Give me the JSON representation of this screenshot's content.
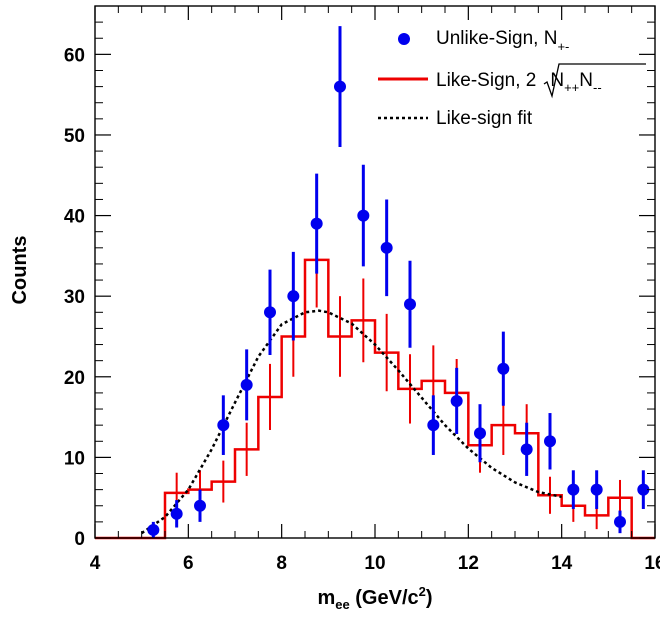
{
  "chart_data": {
    "type": "scatter",
    "xlabel": {
      "main": "m",
      "sub": "ee",
      "rest": " (GeV/c",
      "sup": "2",
      "end": ")"
    },
    "ylabel": "Counts",
    "xlim": [
      4,
      16
    ],
    "ylim": [
      0,
      66
    ],
    "xticks": [
      4,
      6,
      8,
      10,
      12,
      14,
      16
    ],
    "yticks": [
      0,
      10,
      20,
      30,
      40,
      50,
      60
    ],
    "grid": false,
    "legend_position": "top-right",
    "legend": {
      "unlike": {
        "main": "Unlike-Sign, N",
        "sub": "+-"
      },
      "like": {
        "main": "Like-Sign, 2",
        "rad1": "N",
        "rad1_sub": "++",
        "rad2": "N",
        "rad2_sub": "--"
      },
      "fit": "Like-sign fit"
    },
    "colors": {
      "unlike": "#0000ee",
      "like": "#ee0000",
      "fit": "#000000"
    },
    "unlike_sign": {
      "x": [
        5.25,
        5.75,
        6.25,
        6.75,
        7.25,
        7.75,
        8.25,
        8.75,
        9.25,
        9.75,
        10.25,
        10.75,
        11.25,
        11.75,
        12.25,
        12.75,
        13.25,
        13.75,
        14.25,
        14.75,
        15.25,
        15.75
      ],
      "y": [
        1,
        3,
        4,
        14,
        19,
        28,
        30,
        39,
        56,
        40,
        36,
        29,
        14,
        17,
        13,
        21,
        11,
        12,
        6,
        6,
        2,
        6
      ],
      "err": [
        1.0,
        1.7,
        2.0,
        3.7,
        4.4,
        5.3,
        5.5,
        6.2,
        7.5,
        6.3,
        6.0,
        5.4,
        3.7,
        4.1,
        3.6,
        4.6,
        3.3,
        3.5,
        2.4,
        2.4,
        1.4,
        2.4
      ]
    },
    "like_sign": {
      "bin_edges": [
        4,
        4.5,
        5,
        5.5,
        6,
        6.5,
        7,
        7.5,
        8,
        8.5,
        9,
        9.5,
        10,
        10.5,
        11,
        11.5,
        12,
        12.5,
        13,
        13.5,
        14,
        14.5,
        15,
        15.5,
        16
      ],
      "values": [
        0,
        0,
        0,
        5.6,
        6,
        7,
        11,
        17.5,
        25,
        34.5,
        25,
        27,
        23,
        18.5,
        19.5,
        18,
        11.5,
        14,
        13,
        5.3,
        4,
        2.8,
        5,
        0
      ],
      "err": [
        0,
        0,
        0,
        2.5,
        2.4,
        2.6,
        3.3,
        4.1,
        5.0,
        5.9,
        5.0,
        5.2,
        4.8,
        4.3,
        4.4,
        4.2,
        3.4,
        3.7,
        3.6,
        2.3,
        2.0,
        1.7,
        2.2,
        0
      ]
    },
    "like_sign_fit": {
      "x": [
        5.0,
        5.5,
        6.0,
        6.5,
        7.0,
        7.5,
        8.0,
        8.5,
        8.8,
        9.0,
        9.5,
        10.0,
        10.5,
        11.0,
        11.5,
        12.0,
        12.5,
        13.0,
        13.5,
        14.0
      ],
      "y": [
        0.6,
        2.6,
        6.0,
        11.0,
        16.8,
        22.5,
        26.5,
        28.0,
        28.2,
        28.0,
        26.6,
        24.0,
        20.8,
        17.4,
        14.0,
        11.1,
        8.7,
        6.9,
        5.7,
        5.1
      ]
    }
  }
}
